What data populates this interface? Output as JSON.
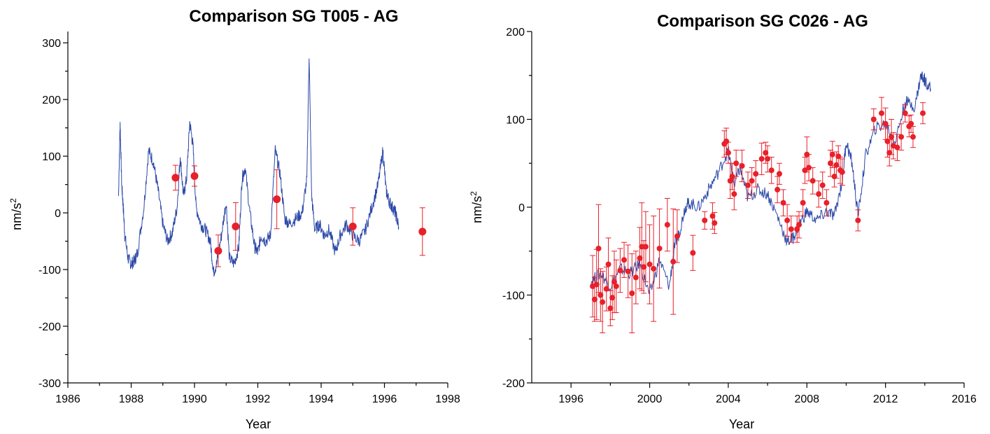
{
  "chart_data": [
    {
      "type": "scatter",
      "title": "Comparison SG T005 - AG",
      "xlabel": "Year",
      "ylabel": "nm/s",
      "ylabel_sup": "2",
      "xlim": [
        1986,
        1998
      ],
      "ylim": [
        -300,
        320
      ],
      "x_ticks": [
        1986,
        1988,
        1990,
        1992,
        1994,
        1996,
        1998
      ],
      "y_ticks": [
        -300,
        -200,
        -100,
        0,
        100,
        200,
        300
      ],
      "x_tick_labels": [
        "1986",
        "1988",
        "1990",
        "1992",
        "1994",
        "1996",
        "1998"
      ],
      "y_tick_labels": [
        "-300",
        "-200",
        "-100",
        "0",
        "100",
        "200",
        "300"
      ],
      "grid": false,
      "colors": {
        "line": "#2b48a8",
        "points": "#e8202a"
      },
      "series": [
        {
          "kind": "line",
          "x": [
            1987.6,
            1987.65,
            1987.7,
            1987.75,
            1987.8,
            1987.9,
            1988.0,
            1988.1,
            1988.2,
            1988.4,
            1988.55,
            1988.7,
            1988.85,
            1989.0,
            1989.15,
            1989.3,
            1989.45,
            1989.55,
            1989.65,
            1989.75,
            1989.85,
            1989.95,
            1990.05,
            1990.2,
            1990.35,
            1990.5,
            1990.6,
            1990.7,
            1990.85,
            1991.0,
            1991.1,
            1991.25,
            1991.4,
            1991.5,
            1991.6,
            1991.75,
            1991.9,
            1992.0,
            1992.1,
            1992.25,
            1992.4,
            1992.55,
            1992.7,
            1992.85,
            1993.0,
            1993.2,
            1993.4,
            1993.55,
            1993.62,
            1993.7,
            1993.8,
            1993.95,
            1994.1,
            1994.25,
            1994.45,
            1994.6,
            1994.8,
            1995.0,
            1995.2,
            1995.4,
            1995.6,
            1995.8,
            1995.95,
            1996.05,
            1996.15,
            1996.25,
            1996.35,
            1996.45
          ],
          "y": [
            30,
            160,
            50,
            10,
            -40,
            -80,
            -90,
            -85,
            -70,
            10,
            110,
            90,
            40,
            -20,
            -50,
            -35,
            10,
            100,
            30,
            60,
            160,
            120,
            10,
            -20,
            -30,
            -50,
            -105,
            -90,
            -40,
            20,
            -80,
            -90,
            -60,
            60,
            80,
            0,
            -60,
            -70,
            -40,
            -50,
            -40,
            110,
            70,
            -10,
            -20,
            -10,
            0,
            60,
            280,
            30,
            -30,
            -20,
            -40,
            -30,
            -70,
            -40,
            -20,
            -40,
            -50,
            -30,
            10,
            50,
            110,
            40,
            20,
            10,
            0,
            -25
          ]
        },
        {
          "kind": "points",
          "x": [
            1989.4,
            1990.0,
            1990.75,
            1991.3,
            1992.6,
            1995.0,
            1997.2
          ],
          "y": [
            62,
            65,
            -67,
            -24,
            24,
            -24,
            -33
          ],
          "err": [
            22,
            18,
            28,
            42,
            52,
            33,
            42
          ]
        }
      ]
    },
    {
      "type": "scatter",
      "title": "Comparison SG C026 - AG",
      "xlabel": "Year",
      "ylabel": "nm/s",
      "ylabel_sup": "2",
      "xlim": [
        1994,
        2016
      ],
      "ylim": [
        -200,
        200
      ],
      "x_ticks": [
        1996,
        2000,
        2004,
        2008,
        2012,
        2016
      ],
      "y_ticks": [
        -200,
        -100,
        0,
        100,
        200
      ],
      "x_tick_labels": [
        "1996",
        "2000",
        "2004",
        "2008",
        "2012",
        "2016"
      ],
      "y_tick_labels": [
        "-200",
        "-100",
        "0",
        "100",
        "200"
      ],
      "grid": false,
      "colors": {
        "line": "#2b48a8",
        "points": "#e8202a"
      },
      "series": [
        {
          "kind": "line",
          "x": [
            1997.0,
            1997.5,
            1998.0,
            1998.5,
            1999.0,
            1999.5,
            2000.0,
            2000.5,
            2001.0,
            2001.3,
            2001.5,
            2001.8,
            2002.0,
            2002.5,
            2003.0,
            2003.5,
            2004.0,
            2004.3,
            2004.6,
            2005.0,
            2005.5,
            2006.0,
            2006.5,
            2007.0,
            2007.3,
            2007.6,
            2008.0,
            2008.5,
            2009.0,
            2009.4,
            2009.8,
            2010.0,
            2010.3,
            2010.6,
            2011.0,
            2011.5,
            2012.0,
            2012.5,
            2013.0,
            2013.5,
            2013.8,
            2014.0,
            2014.3
          ],
          "y": [
            -85,
            -75,
            -90,
            -70,
            -75,
            -65,
            -100,
            -60,
            -90,
            -40,
            -30,
            0,
            5,
            0,
            20,
            40,
            65,
            25,
            45,
            10,
            20,
            15,
            -10,
            -40,
            -35,
            -20,
            -5,
            -15,
            -5,
            -10,
            30,
            75,
            50,
            -10,
            60,
            90,
            95,
            75,
            120,
            115,
            150,
            145,
            135
          ]
        },
        {
          "kind": "points",
          "x": [
            1997.1,
            1997.2,
            1997.3,
            1997.4,
            1997.5,
            1997.6,
            1997.8,
            1997.9,
            1998.0,
            1998.1,
            1998.2,
            1998.3,
            1998.5,
            1998.7,
            1998.9,
            1999.1,
            1999.3,
            1999.5,
            1999.6,
            1999.7,
            1999.8,
            2000.0,
            2000.2,
            2000.5,
            2000.9,
            2001.2,
            2001.4,
            2002.2,
            2002.8,
            2003.2,
            2003.3,
            2003.8,
            2003.9,
            2004.0,
            2004.1,
            2004.2,
            2004.3,
            2004.4,
            2004.7,
            2005.0,
            2005.2,
            2005.4,
            2005.7,
            2005.9,
            2006.0,
            2006.2,
            2006.5,
            2006.6,
            2006.8,
            2007.0,
            2007.2,
            2007.5,
            2007.6,
            2007.8,
            2007.9,
            2008.0,
            2008.1,
            2008.3,
            2008.6,
            2008.8,
            2009.0,
            2009.2,
            2009.3,
            2009.4,
            2009.5,
            2009.6,
            2009.7,
            2009.8,
            2010.6,
            2011.4,
            2011.8,
            2012.0,
            2012.1,
            2012.2,
            2012.3,
            2012.4,
            2012.6,
            2012.8,
            2013.0,
            2013.2,
            2013.3,
            2013.4,
            2013.9
          ],
          "y": [
            -90,
            -105,
            -88,
            -47,
            -100,
            -108,
            -93,
            -65,
            -115,
            -103,
            -85,
            -90,
            -72,
            -60,
            -73,
            -98,
            -80,
            -58,
            -45,
            -68,
            -45,
            -65,
            -70,
            -47,
            -20,
            -62,
            -33,
            -52,
            -15,
            -10,
            -18,
            72,
            75,
            62,
            30,
            35,
            15,
            50,
            47,
            25,
            30,
            38,
            55,
            62,
            55,
            42,
            20,
            38,
            5,
            -15,
            -25,
            -25,
            -20,
            5,
            42,
            60,
            45,
            30,
            15,
            25,
            5,
            50,
            60,
            35,
            48,
            58,
            42,
            40,
            -15,
            100,
            107,
            95,
            75,
            62,
            80,
            70,
            68,
            80,
            107,
            92,
            95,
            80,
            107
          ],
          "err": [
            35,
            25,
            40,
            50,
            30,
            35,
            25,
            30,
            20,
            25,
            35,
            30,
            25,
            20,
            30,
            45,
            30,
            35,
            50,
            30,
            40,
            45,
            60,
            45,
            30,
            60,
            30,
            20,
            10,
            15,
            12,
            15,
            15,
            12,
            20,
            15,
            18,
            15,
            18,
            15,
            15,
            15,
            18,
            12,
            15,
            15,
            15,
            12,
            15,
            18,
            15,
            15,
            15,
            15,
            15,
            20,
            15,
            15,
            15,
            15,
            15,
            15,
            15,
            12,
            15,
            12,
            15,
            15,
            12,
            12,
            18,
            18,
            18,
            15,
            20,
            15,
            15,
            15,
            10,
            12,
            10,
            12,
            12
          ]
        }
      ]
    }
  ]
}
